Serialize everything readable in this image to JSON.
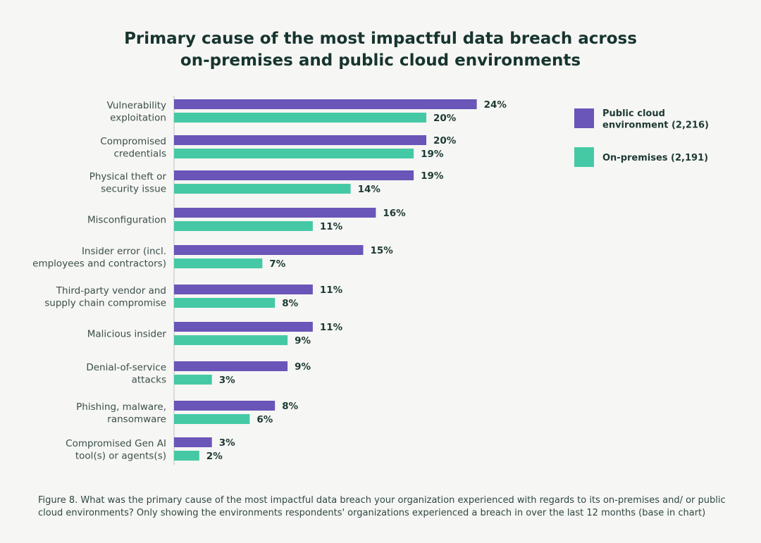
{
  "chart_data": {
    "type": "bar",
    "orientation": "horizontal",
    "title_lines": [
      "Primary cause of the most impactful data breach across",
      "on-premises and public cloud environments"
    ],
    "categories": [
      [
        "Vulnerability",
        "exploitation"
      ],
      [
        "Compromised",
        "credentials"
      ],
      [
        "Physical theft or",
        "security issue"
      ],
      [
        "Misconfiguration"
      ],
      [
        "Insider error (incl.",
        "employees and contractors)"
      ],
      [
        "Third-party vendor and",
        "supply chain compromise"
      ],
      [
        "Malicious insider"
      ],
      [
        "Denial-of-service",
        "attacks"
      ],
      [
        "Phishing, malware,",
        "ransomware"
      ],
      [
        "Compromised Gen AI",
        "tool(s) or agents(s)"
      ]
    ],
    "series": [
      {
        "name": "Public cloud environment (2,216)",
        "legend_lines": [
          "Public cloud",
          "environment (2,216)"
        ],
        "color": "#6a55b8",
        "values": [
          24,
          20,
          19,
          16,
          15,
          11,
          11,
          9,
          8,
          3
        ]
      },
      {
        "name": "On-premises (2,191)",
        "legend_lines": [
          "On-premises (2,191)"
        ],
        "color": "#45c9a5",
        "values": [
          20,
          19,
          14,
          11,
          7,
          8,
          9,
          3,
          6,
          2
        ]
      }
    ],
    "value_suffix": "%",
    "xlim": [
      0,
      24
    ],
    "grid": false,
    "legend_position": "right"
  },
  "footnote": "Figure 8. What was the primary cause of the most impactful data breach your organization experienced with regards to its on-premises and/ or public cloud environments? Only showing the environments respondents' organizations experienced a breach in over the last 12 months (base in chart)"
}
